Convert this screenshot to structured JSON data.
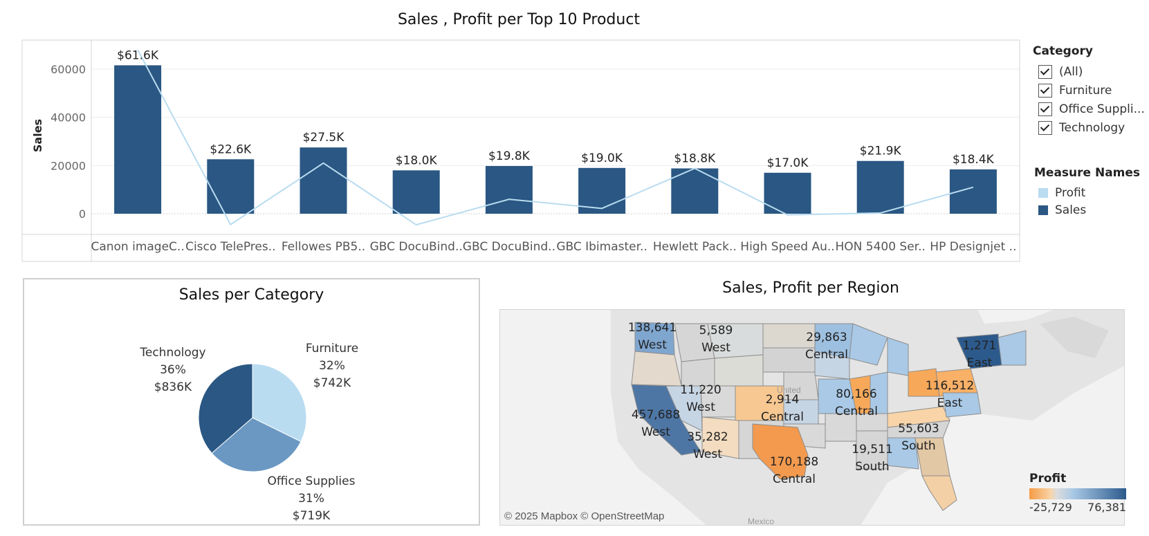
{
  "bar_chart": {
    "title": "Sales , Profit per Top 10 Product"
  },
  "chart_data": [
    {
      "type": "bar",
      "title": "Sales , Profit per Top 10 Product",
      "ylabel": "Sales",
      "xlabel": "",
      "ylim": [
        -8000,
        72000
      ],
      "yticks": [
        0,
        20000,
        40000,
        60000
      ],
      "categories": [
        "Canon imageC..",
        "Cisco TelePres..",
        "Fellowes PB5..",
        "GBC DocuBind..",
        "GBC DocuBind..",
        "GBC Ibimaster..",
        "Hewlett Pack..",
        "High Speed Au..",
        "HON 5400 Ser..",
        "HP Designjet .."
      ],
      "series": [
        {
          "name": "Sales",
          "type": "bar",
          "values": [
            61600,
            22600,
            27500,
            18000,
            19800,
            19000,
            18800,
            17000,
            21900,
            18400
          ],
          "labels": [
            "$61.6K",
            "$22.6K",
            "$27.5K",
            "$18.0K",
            "$19.8K",
            "$19.0K",
            "$18.8K",
            "$17.0K",
            "$21.9K",
            "$18.4K"
          ]
        },
        {
          "name": "Profit",
          "type": "line",
          "values": [
            68000,
            -4500,
            21000,
            -4600,
            6000,
            2200,
            18800,
            -500,
            300,
            11000
          ]
        }
      ],
      "grid": "horizontal"
    },
    {
      "type": "pie",
      "title": "Sales per Category",
      "slices": [
        {
          "name": "Furniture",
          "percent": 32,
          "value_label": "$742K",
          "value": 742
        },
        {
          "name": "Office Supplies",
          "percent": 31,
          "value_label": "$719K",
          "value": 719
        },
        {
          "name": "Technology",
          "percent": 36,
          "value_label": "$836K",
          "value": 836
        }
      ]
    }
  ],
  "filter": {
    "title": "Category",
    "items": [
      "(All)",
      "Furniture",
      "Office Suppli...",
      "Technology"
    ]
  },
  "measure_legend": {
    "title": "Measure Names",
    "items": [
      {
        "label": "Profit",
        "color": "#b9dcf0"
      },
      {
        "label": "Sales",
        "color": "#2a5783"
      }
    ]
  },
  "pie": {
    "title": "Sales per Category",
    "colors": {
      "Furniture": "#b9dcf0",
      "Office Supplies": "#6a98c2",
      "Technology": "#2a5783"
    },
    "labels": {
      "technology": {
        "name": "Technology",
        "pct": "36%",
        "val": "$836K"
      },
      "furniture": {
        "name": "Furniture",
        "pct": "32%",
        "val": "$742K"
      },
      "office": {
        "name": "Office Supplies",
        "pct": "31%",
        "val": "$719K"
      }
    }
  },
  "map": {
    "title": "Sales, Profit per Region",
    "credit": "© 2025 Mapbox © OpenStreetMap",
    "country_label": "United",
    "neighbor_label": "Mexico",
    "regions": [
      {
        "value": "138,641",
        "region": "West"
      },
      {
        "value": "5,589",
        "region": "West"
      },
      {
        "value": "29,863",
        "region": "Central"
      },
      {
        "value": "1,271",
        "region": "East"
      },
      {
        "value": "116,512",
        "region": "East"
      },
      {
        "value": "80,166",
        "region": "Central"
      },
      {
        "value": "11,220",
        "region": "West"
      },
      {
        "value": "2,914",
        "region": "Central"
      },
      {
        "value": "457,688",
        "region": "West"
      },
      {
        "value": "55,603",
        "region": "South"
      },
      {
        "value": "35,282",
        "region": "West"
      },
      {
        "value": "19,511",
        "region": "South"
      },
      {
        "value": "170,188",
        "region": "Central"
      }
    ],
    "legend": {
      "title": "Profit",
      "min": "-25,729",
      "max": "76,381"
    }
  }
}
